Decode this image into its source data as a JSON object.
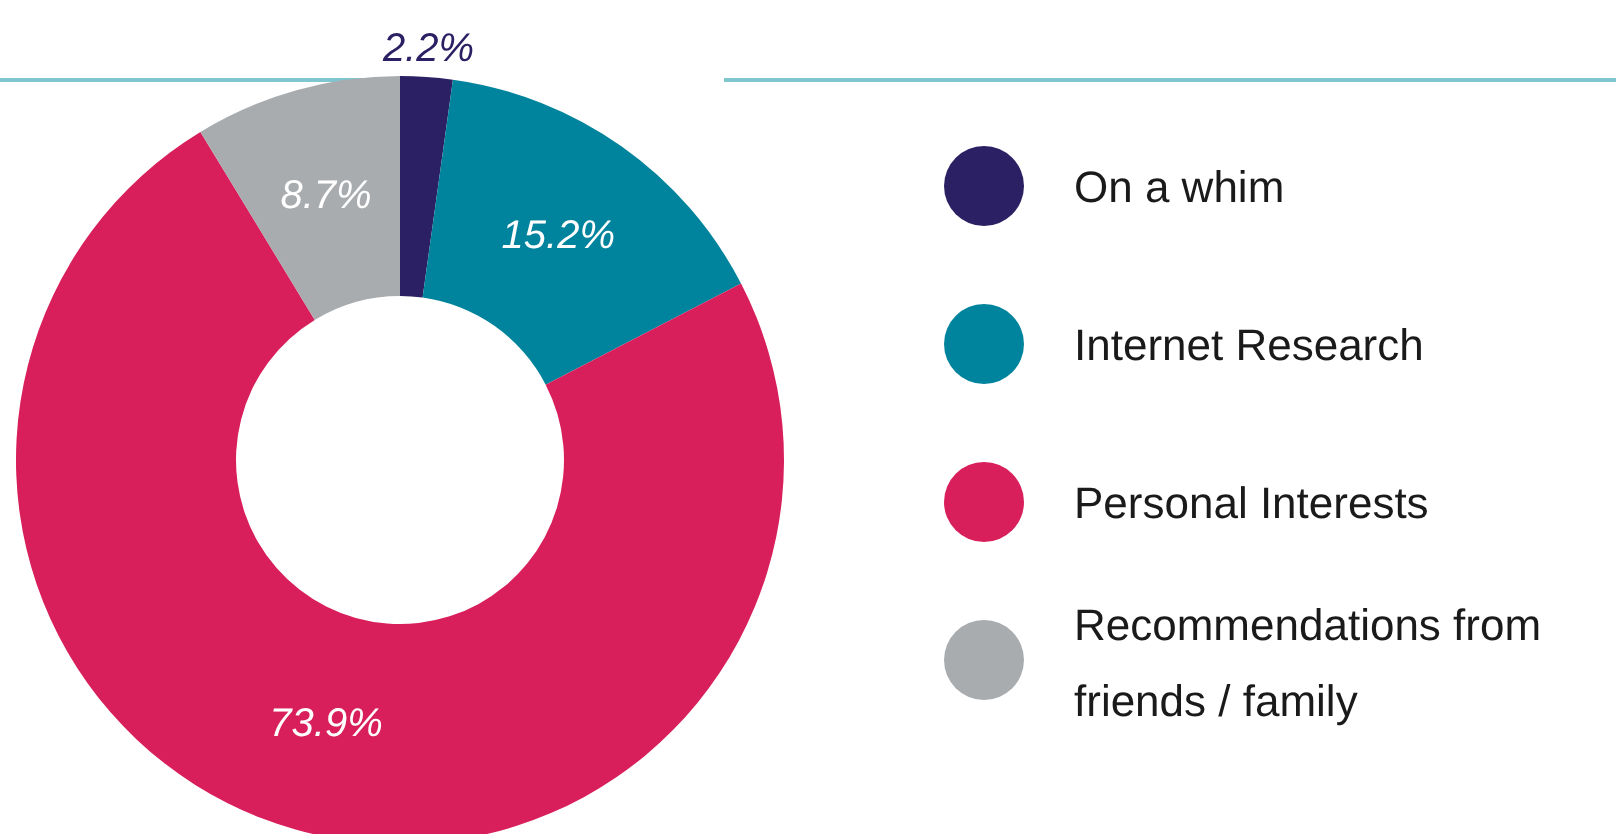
{
  "chart_data": {
    "type": "donut",
    "categories": [
      "On a whim",
      "Internet Research",
      "Personal Interests",
      "Recommendations from friends / family"
    ],
    "values": [
      2.2,
      15.2,
      73.9,
      8.7
    ],
    "colors": [
      "#2b2063",
      "#00839c",
      "#d81e5b",
      "#a9acaf"
    ],
    "value_labels": [
      "2.2%",
      "15.2%",
      "73.9%",
      "8.7%"
    ],
    "legend": "right"
  }
}
